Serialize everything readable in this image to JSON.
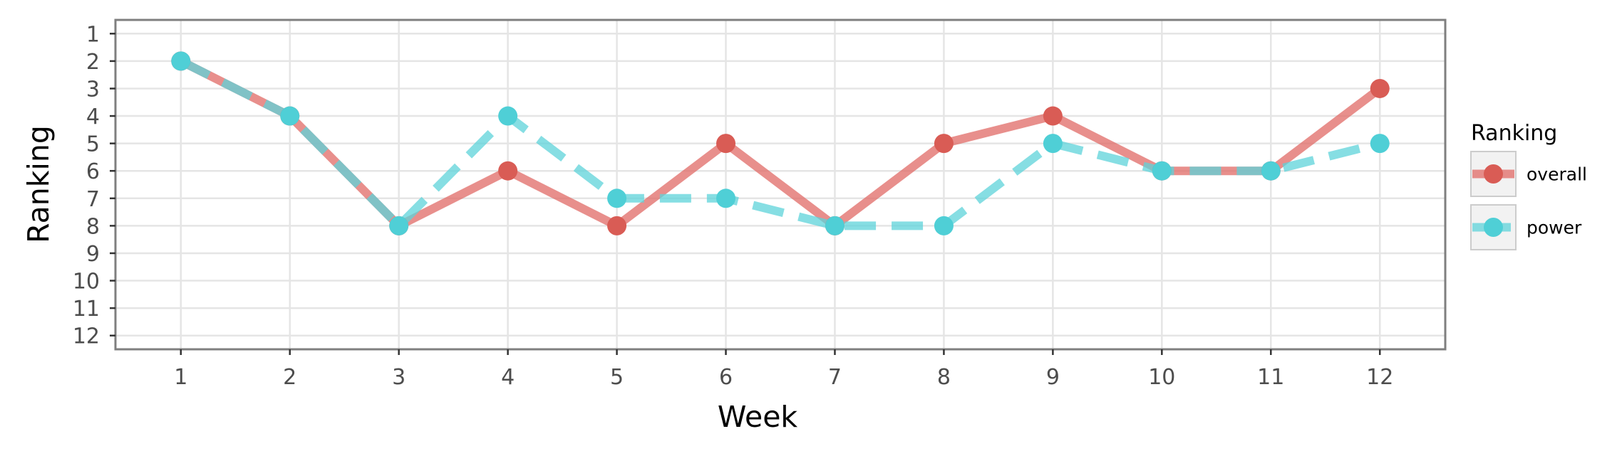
{
  "chart_data": {
    "type": "line",
    "xlabel": "Week",
    "ylabel": "Ranking",
    "x": [
      1,
      2,
      3,
      4,
      5,
      6,
      7,
      8,
      9,
      10,
      11,
      12
    ],
    "xlim": [
      0.4,
      12.6
    ],
    "ylim": [
      12.5,
      0.5
    ],
    "y_reversed": true,
    "x_ticks": [
      "1",
      "2",
      "3",
      "4",
      "5",
      "6",
      "7",
      "8",
      "9",
      "10",
      "11",
      "12"
    ],
    "y_ticks": [
      "1",
      "2",
      "3",
      "4",
      "5",
      "6",
      "7",
      "8",
      "9",
      "10",
      "11",
      "12"
    ],
    "grid": true,
    "legend": {
      "title": "Ranking",
      "position": "right",
      "entries": [
        "overall",
        "power"
      ]
    },
    "series": [
      {
        "name": "overall",
        "values": [
          2,
          4,
          8,
          6,
          8,
          5,
          8,
          5,
          4,
          6,
          6,
          3
        ],
        "color": "#e06a65",
        "point_color": "#d95c55",
        "dash": "solid"
      },
      {
        "name": "power",
        "values": [
          2,
          4,
          8,
          4,
          7,
          7,
          8,
          8,
          5,
          6,
          6,
          5
        ],
        "color": "#5ed3d9",
        "point_color": "#4fcfd6",
        "dash": "dashed"
      }
    ]
  }
}
